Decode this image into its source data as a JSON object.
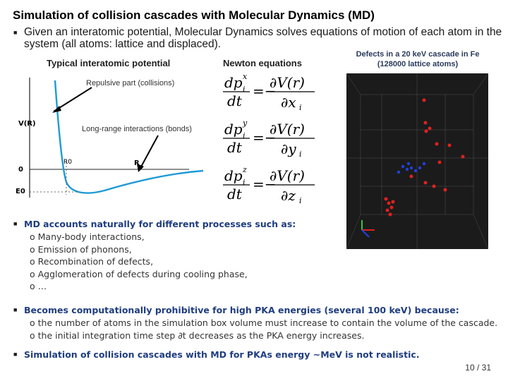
{
  "title": "Simulation of collision cascades with Molecular Dynamics (MD)",
  "intro_bullet": "Given an interatomic potential, Molecular Dynamics solves equations of motion of each atom in the system (all atoms: lattice and displaced).",
  "labels": {
    "potential": "Typical interatomic potential",
    "newton": "Newton equations",
    "repulsive": "Repulsive part (collisions)",
    "longrange": "Long-range interactions (bonds)",
    "defects_line1": "Defects in a 20 keV cascade in Fe",
    "defects_line2": "(128000 lattice atoms)"
  },
  "potential_axis": {
    "y_label": "V(R)",
    "x_label": "R",
    "r0": "R0",
    "zero": "0",
    "e0": "E0"
  },
  "equations": {
    "dp": "dp",
    "dt": "dt",
    "dV": "∂V(r)",
    "eq": "=−",
    "components": [
      {
        "sup": "x",
        "var": "∂x",
        "sub": "i"
      },
      {
        "sup": "y",
        "var": "∂y",
        "sub": "i"
      },
      {
        "sup": "z",
        "var": "∂z",
        "sub": "i"
      }
    ]
  },
  "md_bullet": "MD accounts naturally for different processes such as:",
  "md_items": [
    "Many-body interactions,",
    "Emission of phonons,",
    "Recombination of defects,",
    "Agglomeration of defects during cooling phase,",
    "…"
  ],
  "prohibitive_bullet": "Becomes computationally prohibitive for high PKA energies (several 100 keV) because:",
  "prohibitive_items": [
    "the number of atoms in the simulation box volume must increase to contain the volume of the cascade.",
    "the initial integration time step ∂t decreases as the PKA energy increases."
  ],
  "final_bullet": "Simulation of collision cascades with MD for PKAs energy ∼MeV is not realistic.",
  "page": "10 / 31",
  "colors": {
    "curve": "#1f9ad6",
    "bold_text": "#1f3d80",
    "vacancy": "#e02020",
    "interstitial": "#2040e0"
  }
}
